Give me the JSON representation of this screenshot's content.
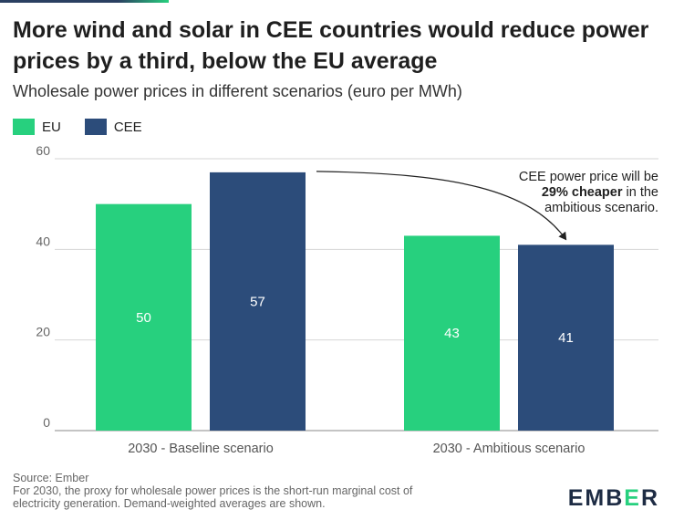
{
  "header": {
    "title": "More wind and solar in CEE countries would reduce power prices by a third, below the EU average",
    "subtitle": "Wholesale power prices in different scenarios (euro per MWh)"
  },
  "colors": {
    "eu": "#27d07e",
    "cee": "#2c4c7a",
    "grid": "#d6d6d6",
    "axis": "#888888"
  },
  "chart_data": {
    "type": "bar",
    "title": "More wind and solar in CEE countries would reduce power prices by a third, below the EU average",
    "subtitle": "Wholesale power prices in different scenarios (euro per MWh)",
    "xlabel": "",
    "ylabel": "euro per MWh",
    "categories": [
      "2030 - Baseline scenario",
      "2030 - Ambitious scenario"
    ],
    "series": [
      {
        "name": "EU",
        "values": [
          50,
          43
        ],
        "labels": [
          "50",
          "43"
        ]
      },
      {
        "name": "CEE",
        "values": [
          57,
          41
        ],
        "labels": [
          "57",
          "41"
        ]
      }
    ],
    "ylim": [
      0,
      60
    ],
    "yticks": [
      0,
      20,
      40,
      60
    ],
    "ytick_labels": [
      "0",
      "20",
      "40",
      "60"
    ],
    "grid": true,
    "legend": "top-left",
    "annotation": {
      "lines": [
        [
          {
            "text": "CEE power price will be",
            "bold": false
          }
        ],
        [
          {
            "text": "29% cheaper",
            "bold": true
          },
          {
            "text": " in the",
            "bold": false
          }
        ],
        [
          {
            "text": "ambitious scenario.",
            "bold": false
          }
        ]
      ],
      "from": {
        "category": 0,
        "series": 1
      },
      "to": {
        "category": 1,
        "series": 1
      }
    }
  },
  "footer": {
    "source": "Source: Ember",
    "note_line1": "For 2030, the proxy for wholesale power prices is the short-run marginal cost of",
    "note_line2": "electricity generation. Demand-weighted averages are shown.",
    "logo_a": "EMB",
    "logo_b": "E",
    "logo_c": "R"
  }
}
